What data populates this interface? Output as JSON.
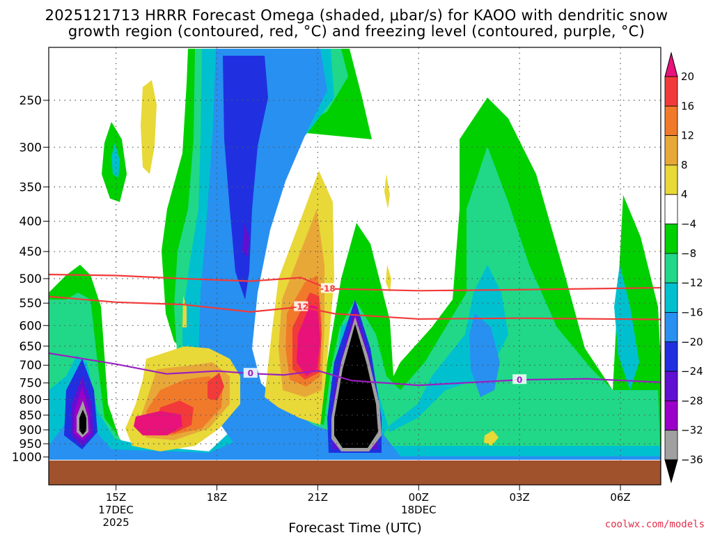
{
  "chart_data": {
    "type": "heatmap",
    "title_line1": "2025121713 HRRR Forecast Omega (shaded, μbar/s) for KAOO with dendritic snow",
    "title_line2": "growth region (contoured, red, °C) and freezing level (contoured, purple, °C)",
    "xlabel": "Forecast Time (UTC)",
    "source": "coolwx.com/models",
    "x_range_hours": [
      13.0,
      31.2
    ],
    "x_ticks": [
      {
        "hour": 15,
        "label": "15Z",
        "sub1": "17DEC",
        "sub2": "2025"
      },
      {
        "hour": 18,
        "label": "18Z",
        "sub1": "",
        "sub2": ""
      },
      {
        "hour": 21,
        "label": "21Z",
        "sub1": "",
        "sub2": ""
      },
      {
        "hour": 24,
        "label": "00Z",
        "sub1": "18DEC",
        "sub2": ""
      },
      {
        "hour": 27,
        "label": "03Z",
        "sub1": "",
        "sub2": ""
      },
      {
        "hour": 30,
        "label": "06Z",
        "sub1": "",
        "sub2": ""
      }
    ],
    "y_ticks": [
      250,
      300,
      350,
      400,
      450,
      500,
      550,
      600,
      650,
      700,
      750,
      800,
      850,
      900,
      950,
      1000
    ],
    "ground_pressure_hpa": 960,
    "colorbar": {
      "levels": [
        "20",
        "16",
        "12",
        "8",
        "4",
        "−4",
        "−8",
        "−12",
        "−16",
        "−20",
        "−24",
        "−28",
        "−32",
        "−36"
      ],
      "colors": [
        "#e8127a",
        "#f23a3a",
        "#f07a2a",
        "#e8a838",
        "#e8d838",
        "#ffffff",
        "#00d000",
        "#20d888",
        "#00c0d0",
        "#2890f0",
        "#2030e0",
        "#6010d0",
        "#9a00c8",
        "#a0a0a0",
        "#000000"
      ]
    },
    "contours": [
      {
        "label": "-18",
        "color": "#f23a3a",
        "points": [
          [
            13.0,
            492
          ],
          [
            15,
            494
          ],
          [
            17,
            500
          ],
          [
            19,
            505
          ],
          [
            20.5,
            498
          ],
          [
            21.3,
            520
          ],
          [
            24,
            524
          ],
          [
            27,
            522
          ],
          [
            31.2,
            518
          ]
        ]
      },
      {
        "label": "-12",
        "color": "#f23a3a",
        "points": [
          [
            13.0,
            536
          ],
          [
            15,
            548
          ],
          [
            17,
            553
          ],
          [
            19,
            569
          ],
          [
            20.5,
            558
          ],
          [
            21.5,
            573
          ],
          [
            24,
            585
          ],
          [
            27,
            583
          ],
          [
            31.2,
            586
          ]
        ]
      },
      {
        "label": "0",
        "color": "#9a20c0",
        "points": [
          [
            13.0,
            668
          ],
          [
            15,
            697
          ],
          [
            16.5,
            724
          ],
          [
            18,
            716
          ],
          [
            19,
            723
          ],
          [
            20,
            727
          ],
          [
            21,
            715
          ],
          [
            22,
            743
          ],
          [
            24,
            757
          ],
          [
            27,
            741
          ],
          [
            29,
            738
          ],
          [
            31.2,
            748
          ]
        ]
      }
    ]
  }
}
